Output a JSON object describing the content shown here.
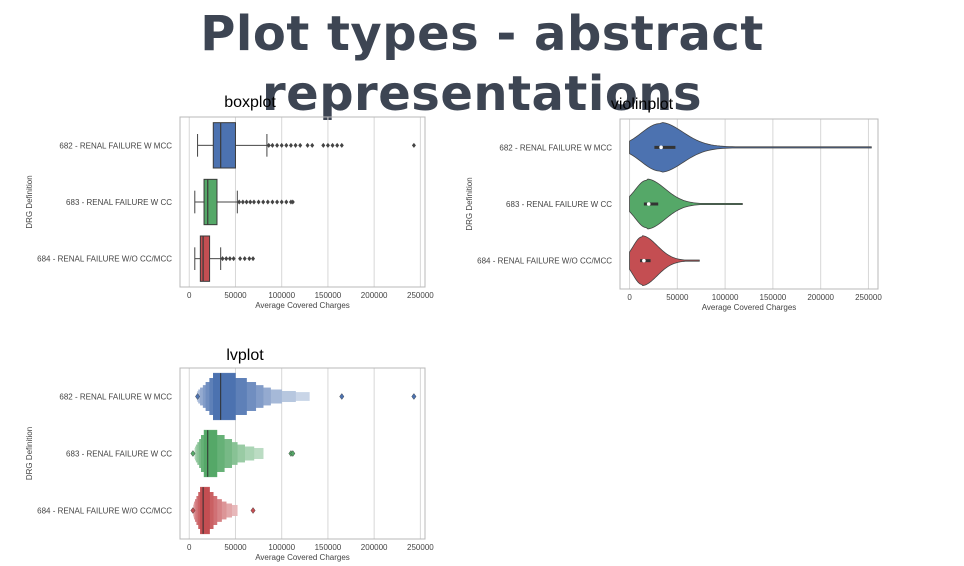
{
  "slide": {
    "title": "Plot types - abstract representations"
  },
  "chart_data": [
    {
      "type": "boxplot",
      "title": "boxplot",
      "xlabel": "Average Covered Charges",
      "ylabel": "DRG Definition",
      "xlim": [
        -10000,
        255000
      ],
      "xticks": [
        "0",
        "50000",
        "100000",
        "150000",
        "200000",
        "250000"
      ],
      "categories": [
        "682 - RENAL FAILURE W MCC",
        "683 - RENAL FAILURE W CC",
        "684 - RENAL FAILURE W/O CC/MCC"
      ],
      "colors": [
        "#4c72b0",
        "#55a868",
        "#c44e52"
      ],
      "series": [
        {
          "min": 9000,
          "q1": 26000,
          "median": 34000,
          "q3": 50000,
          "whisker_high": 84000,
          "outliers": [
            86000,
            90000,
            95000,
            100000,
            105000,
            110000,
            115000,
            120000,
            128000,
            133000,
            145000,
            150000,
            155000,
            160000,
            165000,
            243000
          ]
        },
        {
          "min": 6000,
          "q1": 16000,
          "median": 20000,
          "q3": 30000,
          "whisker_high": 52000,
          "outliers": [
            54000,
            58000,
            62000,
            66000,
            70000,
            75000,
            80000,
            85000,
            90000,
            95000,
            100000,
            105000,
            110000,
            112000
          ]
        },
        {
          "min": 6000,
          "q1": 12000,
          "median": 15000,
          "q3": 22000,
          "whisker_high": 34000,
          "outliers": [
            36000,
            40000,
            44000,
            48000,
            55000,
            60000,
            65000,
            69000
          ]
        }
      ]
    },
    {
      "type": "violinplot",
      "title": "violinplot",
      "xlabel": "Average Covered Charges",
      "ylabel": "DRG Definition",
      "xlim": [
        -10000,
        260000
      ],
      "xticks": [
        "0",
        "50000",
        "100000",
        "150000",
        "200000",
        "250000"
      ],
      "categories": [
        "682 - RENAL FAILURE W MCC",
        "683 - RENAL FAILURE W CC",
        "684 - RENAL FAILURE W/O CC/MCC"
      ],
      "colors": [
        "#4c72b0",
        "#55a868",
        "#c44e52"
      ],
      "series": [
        {
          "min": 0,
          "max": 253000,
          "mode": 32000,
          "q1": 26000,
          "median": 33000,
          "q3": 48000
        },
        {
          "min": 0,
          "max": 118000,
          "mode": 18000,
          "q1": 15000,
          "median": 20000,
          "q3": 30000
        },
        {
          "min": 0,
          "max": 73000,
          "mode": 13000,
          "q1": 11000,
          "median": 15000,
          "q3": 22000
        }
      ]
    },
    {
      "type": "lvplot",
      "title": "lvplot",
      "xlabel": "Average Covered Charges",
      "ylabel": "DRG Definition",
      "xlim": [
        -10000,
        255000
      ],
      "xticks": [
        "0",
        "50000",
        "100000",
        "150000",
        "200000",
        "250000"
      ],
      "categories": [
        "682 - RENAL FAILURE W MCC",
        "683 - RENAL FAILURE W CC",
        "684 - RENAL FAILURE W/O CC/MCC"
      ],
      "colors": [
        "#4c72b0",
        "#55a868",
        "#c44e52"
      ],
      "series": [
        {
          "median": 34000,
          "boxes": [
            [
              26000,
              50000
            ],
            [
              22000,
              62000
            ],
            [
              18000,
              72000
            ],
            [
              15000,
              80000
            ],
            [
              12000,
              88000
            ],
            [
              10000,
              100000
            ],
            [
              9000,
              115000
            ],
            [
              8500,
              130000
            ]
          ],
          "outliers": [
            9000,
            165000,
            243000
          ]
        },
        {
          "median": 20000,
          "boxes": [
            [
              16000,
              30000
            ],
            [
              13000,
              38000
            ],
            [
              11000,
              46000
            ],
            [
              9000,
              52000
            ],
            [
              7500,
              60000
            ],
            [
              6500,
              70000
            ],
            [
              6000,
              80000
            ]
          ],
          "outliers": [
            4000,
            110000,
            112000
          ]
        },
        {
          "median": 15000,
          "boxes": [
            [
              12000,
              22000
            ],
            [
              10000,
              26000
            ],
            [
              8000,
              30000
            ],
            [
              6500,
              35000
            ],
            [
              5500,
              40000
            ],
            [
              5000,
              46000
            ],
            [
              4500,
              52000
            ]
          ],
          "outliers": [
            4000,
            69000
          ]
        }
      ]
    }
  ]
}
